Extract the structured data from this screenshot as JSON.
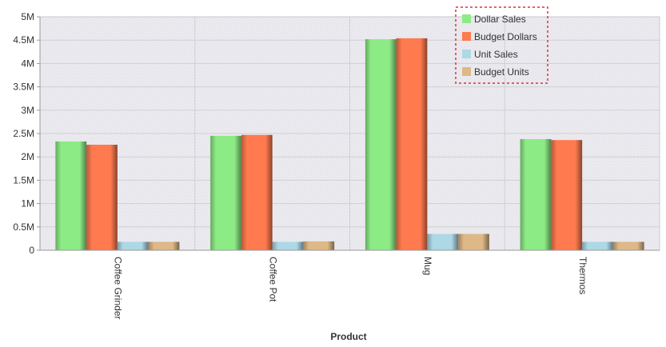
{
  "chart_data": {
    "type": "bar",
    "categories": [
      "Coffee Grinder",
      "Coffee Pot",
      "Mug",
      "Thermos"
    ],
    "series": [
      {
        "name": "Dollar Sales",
        "color": "#8DEB86",
        "values": [
          2330000,
          2450000,
          4520000,
          2380000
        ]
      },
      {
        "name": "Budget Dollars",
        "color": "#FF7A4F",
        "values": [
          2260000,
          2470000,
          4540000,
          2360000
        ]
      },
      {
        "name": "Unit Sales",
        "color": "#ADD8E6",
        "values": [
          180000,
          180000,
          350000,
          180000
        ]
      },
      {
        "name": "Budget Units",
        "color": "#DEB887",
        "values": [
          180000,
          190000,
          350000,
          180000
        ]
      }
    ],
    "title": "",
    "xlabel": "Product",
    "ylabel": "",
    "ylim": [
      0,
      5000000
    ],
    "yticks": [
      {
        "value": 0,
        "label": "0"
      },
      {
        "value": 500000,
        "label": "0.5M"
      },
      {
        "value": 1000000,
        "label": "1M"
      },
      {
        "value": 1500000,
        "label": "1.5M"
      },
      {
        "value": 2000000,
        "label": "2M"
      },
      {
        "value": 2500000,
        "label": "2.5M"
      },
      {
        "value": 3000000,
        "label": "3M"
      },
      {
        "value": 3500000,
        "label": "3.5M"
      },
      {
        "value": 4000000,
        "label": "4M"
      },
      {
        "value": 4500000,
        "label": "4.5M"
      },
      {
        "value": 5000000,
        "label": "5M"
      }
    ],
    "grid": true,
    "legend_position": "top-right"
  }
}
